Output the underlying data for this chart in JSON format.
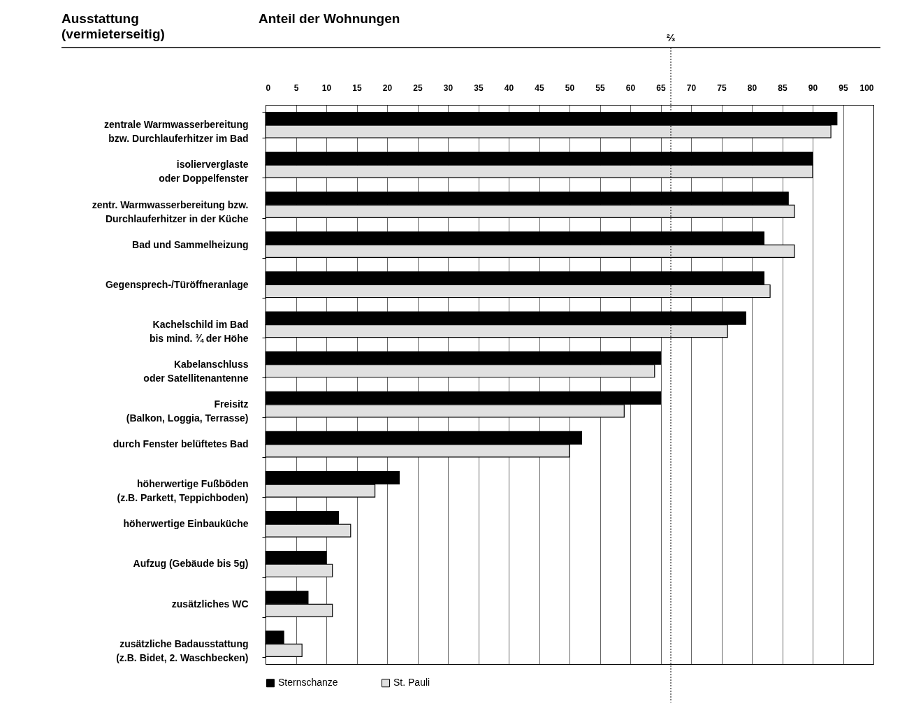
{
  "chart_data": {
    "type": "bar",
    "orientation": "horizontal",
    "ylabel": "Ausstattung\n(vermieterseitig)",
    "xlabel": "Anteil der Wohnungen",
    "categories": [
      "zentrale Warmwasserbereitung\nbzw. Durchlauferhitzer im Bad",
      "isolierverglaste\noder Doppelfenster",
      "zentr. Warmwasserbereitung bzw.\nDurchlauferhitzer in der Küche",
      "Bad und Sammelheizung",
      "Gegensprech-/Türöffneranlage",
      "Kachelschild im Bad\nbis mind. ¾ der Höhe",
      "Kabelanschluss\noder Satellitenantenne",
      "Freisitz\n(Balkon, Loggia, Terrasse)",
      "durch Fenster belüftetes Bad",
      "höherwertige Fußböden\n(z.B. Parkett, Teppichboden)",
      "höherwertige Einbauküche",
      "Aufzug (Gebäude bis 5g)",
      "zusätzliches WC",
      "zusätzliche Badausstattung\n(z.B. Bidet, 2. Waschbecken)"
    ],
    "series": [
      {
        "name": "Sternschanze",
        "color": "#000000",
        "values": [
          94,
          90,
          86,
          82,
          82,
          79,
          65,
          65,
          52,
          22,
          12,
          10,
          7,
          3
        ]
      },
      {
        "name": "St. Pauli",
        "color": "#e0e0e0",
        "values": [
          93,
          90,
          87,
          87,
          83,
          76,
          64,
          59,
          50,
          18,
          14,
          11,
          11,
          6
        ]
      }
    ],
    "xlim": [
      0,
      100
    ],
    "xticks": [
      0,
      5,
      10,
      15,
      20,
      25,
      30,
      35,
      40,
      45,
      50,
      55,
      60,
      65,
      70,
      75,
      80,
      85,
      90,
      95,
      100
    ],
    "grid": "x",
    "legend": "bottom",
    "ref_lines": [
      {
        "axis": "x",
        "value": 66.67,
        "label": "⅔",
        "line_style": "dotted"
      }
    ]
  }
}
